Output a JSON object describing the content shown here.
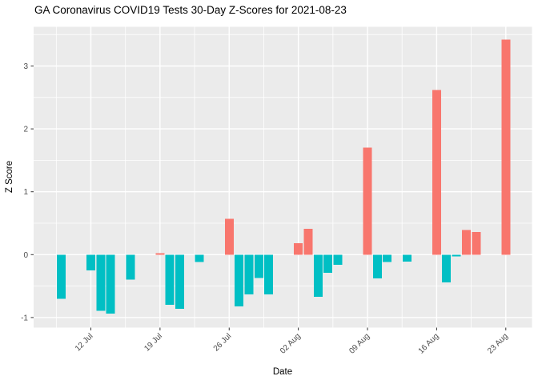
{
  "chart_data": {
    "type": "bar",
    "title": "GA Coronavirus COVID19 Tests 30-Day Z-Scores for 2021-08-23",
    "xlabel": "Date",
    "ylabel": "Z Score",
    "legend_position": "none",
    "grid": "on",
    "panel_bg": "#EBEBEB",
    "grid_color": "#FFFFFF",
    "axis_text_color": "#4D4D4D",
    "tick_mark_color": "#333333",
    "title_color": "#000000",
    "colors": {
      "positive": "#F8766D",
      "negative": "#00BFC4"
    },
    "ylim": [
      -1.16,
      3.63
    ],
    "y_ticks": [
      "-1",
      "0",
      "1",
      "2",
      "3"
    ],
    "y_tick_values": [
      -1,
      0,
      1,
      2,
      3
    ],
    "x_tick_labels": [
      "12 Jul",
      "19 Jul",
      "26 Jul",
      "02 Aug",
      "09 Aug",
      "16 Aug",
      "23 Aug"
    ],
    "x_tick_dates": [
      "2021-07-12",
      "2021-07-19",
      "2021-07-26",
      "2021-08-02",
      "2021-08-09",
      "2021-08-16",
      "2021-08-23"
    ],
    "points": [
      {
        "date": "2021-07-09",
        "z": -0.7
      },
      {
        "date": "2021-07-12",
        "z": -0.25
      },
      {
        "date": "2021-07-13",
        "z": -0.89
      },
      {
        "date": "2021-07-14",
        "z": -0.94
      },
      {
        "date": "2021-07-16",
        "z": -0.4
      },
      {
        "date": "2021-07-19",
        "z": 0.02
      },
      {
        "date": "2021-07-20",
        "z": -0.8
      },
      {
        "date": "2021-07-21",
        "z": -0.86
      },
      {
        "date": "2021-07-23",
        "z": -0.12
      },
      {
        "date": "2021-07-26",
        "z": 0.57
      },
      {
        "date": "2021-07-27",
        "z": -0.82
      },
      {
        "date": "2021-07-28",
        "z": -0.63
      },
      {
        "date": "2021-07-29",
        "z": -0.37
      },
      {
        "date": "2021-07-30",
        "z": -0.63
      },
      {
        "date": "2021-08-02",
        "z": 0.18
      },
      {
        "date": "2021-08-03",
        "z": 0.41
      },
      {
        "date": "2021-08-04",
        "z": -0.67
      },
      {
        "date": "2021-08-05",
        "z": -0.29
      },
      {
        "date": "2021-08-06",
        "z": -0.16
      },
      {
        "date": "2021-08-09",
        "z": 1.7
      },
      {
        "date": "2021-08-10",
        "z": -0.38
      },
      {
        "date": "2021-08-11",
        "z": -0.12
      },
      {
        "date": "2021-08-13",
        "z": -0.11
      },
      {
        "date": "2021-08-16",
        "z": 2.62
      },
      {
        "date": "2021-08-17",
        "z": -0.44
      },
      {
        "date": "2021-08-18",
        "z": -0.03
      },
      {
        "date": "2021-08-19",
        "z": 0.39
      },
      {
        "date": "2021-08-20",
        "z": 0.36
      },
      {
        "date": "2021-08-23",
        "z": 3.42
      }
    ]
  }
}
